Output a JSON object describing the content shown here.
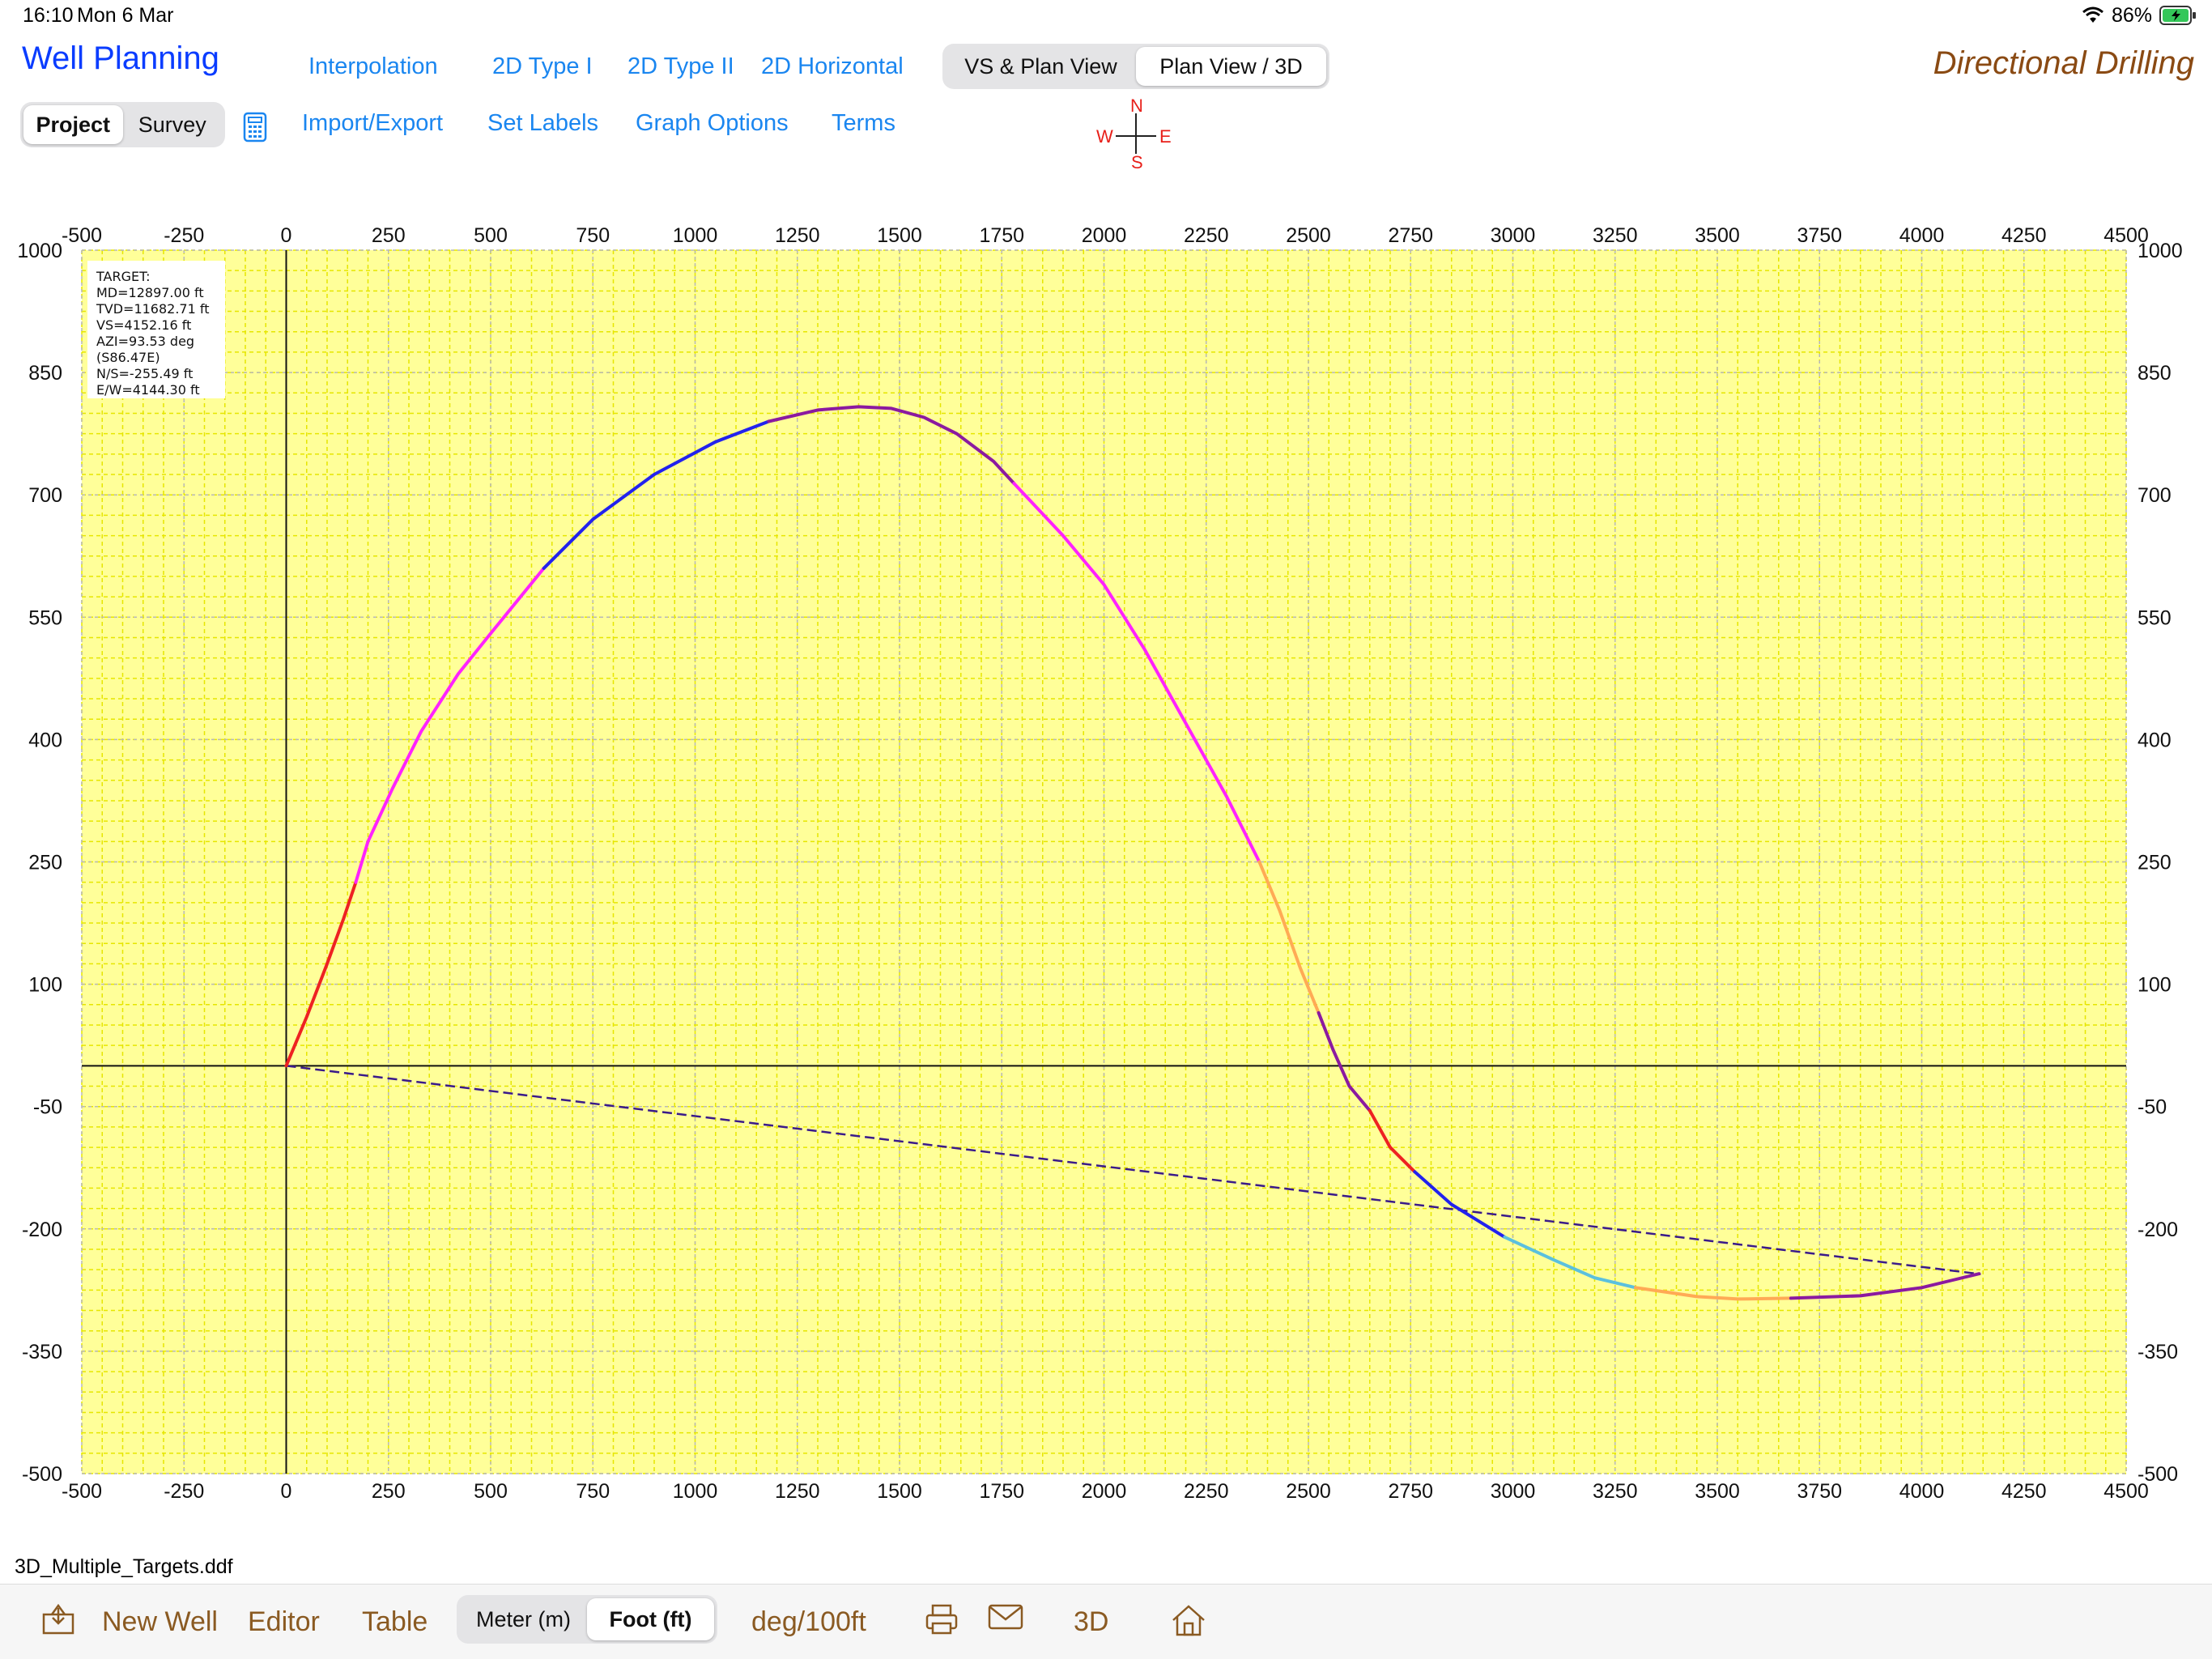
{
  "status_bar": {
    "time": "16:10",
    "date": "Mon 6 Mar",
    "battery": "86%"
  },
  "header": {
    "app_title": "Well Planning",
    "brand": "Directional Drilling",
    "nav_top": [
      "Interpolation",
      "2D Type I",
      "2D Type II",
      "2D Horizontal"
    ],
    "view_segment": {
      "options": [
        "VS & Plan View",
        "Plan View / 3D"
      ],
      "selected": "Plan View / 3D"
    },
    "mode_segment": {
      "options": [
        "Project",
        "Survey"
      ],
      "selected": "Project"
    },
    "nav_bottom": [
      "Import/Export",
      "Set Labels",
      "Graph Options",
      "Terms"
    ],
    "compass": {
      "n": "N",
      "s": "S",
      "e": "E",
      "w": "W"
    }
  },
  "target_info": {
    "lines": [
      "TARGET:",
      "MD=12897.00 ft",
      "TVD=11682.71 ft",
      "VS=4152.16 ft",
      "AZI=93.53 deg",
      "(S86.47E)",
      "N/S=-255.49 ft",
      "E/W=4144.30 ft"
    ]
  },
  "chart_data": {
    "type": "line",
    "x_ticks": [
      -500,
      -250,
      0,
      250,
      500,
      750,
      1000,
      1250,
      1500,
      1750,
      2000,
      2250,
      2500,
      2750,
      3000,
      3250,
      3500,
      3750,
      4000,
      4250,
      4500
    ],
    "y_ticks": [
      1000,
      850,
      700,
      550,
      400,
      250,
      100,
      -50,
      -200,
      -350,
      -500
    ],
    "xlim": [
      -500,
      4500
    ],
    "ylim": [
      -500,
      1000
    ],
    "grid": true,
    "background": "#ffff99",
    "grid_color": "#e6e600",
    "segments": [
      {
        "color": "#ee2222",
        "points": [
          [
            0,
            0
          ],
          [
            50,
            60
          ],
          [
            100,
            125
          ],
          [
            140,
            180
          ],
          [
            170,
            225
          ]
        ]
      },
      {
        "color": "#ff22ff",
        "points": [
          [
            170,
            225
          ],
          [
            200,
            275
          ],
          [
            260,
            340
          ],
          [
            330,
            410
          ],
          [
            420,
            480
          ],
          [
            500,
            530
          ],
          [
            630,
            610
          ]
        ]
      },
      {
        "color": "#2222ee",
        "points": [
          [
            630,
            610
          ],
          [
            750,
            670
          ],
          [
            900,
            725
          ],
          [
            1050,
            765
          ],
          [
            1180,
            790
          ]
        ]
      },
      {
        "color": "#8b1aa0",
        "points": [
          [
            1180,
            790
          ],
          [
            1300,
            804
          ],
          [
            1400,
            808
          ],
          [
            1480,
            806
          ],
          [
            1560,
            795
          ],
          [
            1640,
            775
          ],
          [
            1730,
            741
          ],
          [
            1780,
            714
          ]
        ]
      },
      {
        "color": "#ff22ff",
        "points": [
          [
            1780,
            714
          ],
          [
            1900,
            650
          ],
          [
            2000,
            590
          ],
          [
            2100,
            510
          ],
          [
            2200,
            420
          ],
          [
            2300,
            330
          ],
          [
            2380,
            250
          ]
        ]
      },
      {
        "color": "#ffaa55",
        "points": [
          [
            2380,
            250
          ],
          [
            2430,
            190
          ],
          [
            2480,
            120
          ],
          [
            2525,
            65
          ]
        ]
      },
      {
        "color": "#8b1aa0",
        "points": [
          [
            2525,
            65
          ],
          [
            2560,
            20
          ],
          [
            2600,
            -25
          ],
          [
            2650,
            -55
          ]
        ]
      },
      {
        "color": "#ee2222",
        "points": [
          [
            2650,
            -55
          ],
          [
            2700,
            -100
          ],
          [
            2760,
            -130
          ]
        ]
      },
      {
        "color": "#2222ee",
        "points": [
          [
            2760,
            -130
          ],
          [
            2850,
            -170
          ],
          [
            2980,
            -210
          ]
        ]
      },
      {
        "color": "#5bc0de",
        "points": [
          [
            2980,
            -210
          ],
          [
            3100,
            -238
          ],
          [
            3200,
            -260
          ],
          [
            3300,
            -272
          ]
        ]
      },
      {
        "color": "#ffaa55",
        "points": [
          [
            3300,
            -272
          ],
          [
            3450,
            -283
          ],
          [
            3550,
            -286
          ],
          [
            3680,
            -285
          ]
        ]
      },
      {
        "color": "#8b1aa0",
        "points": [
          [
            3680,
            -285
          ],
          [
            3850,
            -282
          ],
          [
            4000,
            -272
          ],
          [
            4140,
            -255
          ]
        ]
      }
    ],
    "target_line": {
      "color": "#3a1a8a",
      "dashed": true,
      "from": [
        0,
        0
      ],
      "to": [
        4144.3,
        -255.49
      ]
    }
  },
  "footer": {
    "filename": "3D_Multiple_Targets.ddf",
    "new_well": "New Well",
    "editor": "Editor",
    "table": "Table",
    "units_segment": {
      "options": [
        "Meter (m)",
        "Foot (ft)"
      ],
      "selected": "Foot (ft)"
    },
    "dogleg_unit": "deg/100ft",
    "three_d": "3D"
  }
}
